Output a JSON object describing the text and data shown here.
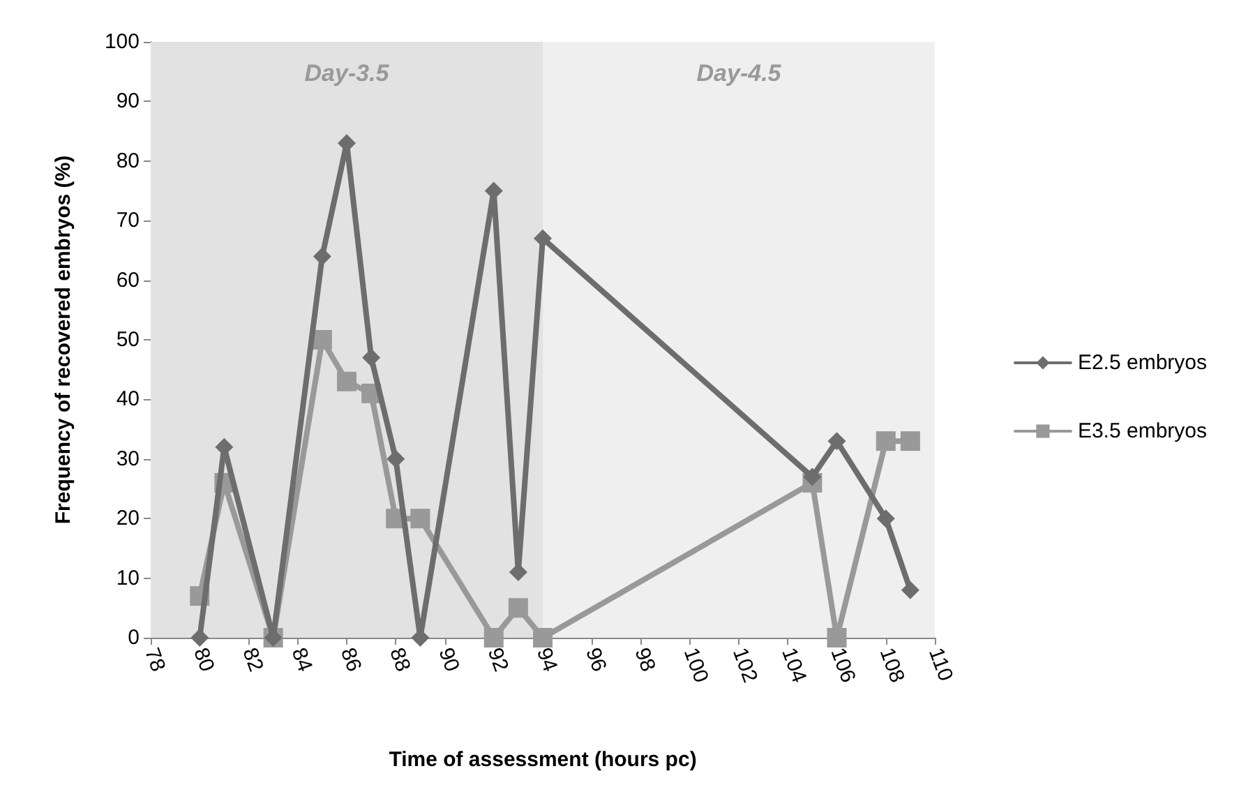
{
  "chart_data": {
    "type": "line",
    "xlabel": "Time of assessment (hours pc)",
    "ylabel": "Frequency of recovered embryos (%)",
    "x": [
      80,
      81,
      83,
      85,
      86,
      87,
      88,
      89,
      92,
      93,
      94,
      105,
      106,
      108,
      109
    ],
    "series": [
      {
        "name": "E2.5 embryos",
        "color": "#6d6d6d",
        "marker": "diamond",
        "values": [
          0,
          32,
          0,
          64,
          83,
          47,
          30,
          0,
          75,
          11,
          67,
          27,
          33,
          20,
          8
        ]
      },
      {
        "name": "E3.5 embryos",
        "color": "#999999",
        "marker": "square",
        "values": [
          7,
          26,
          0,
          50,
          43,
          41,
          20,
          20,
          0,
          5,
          0,
          26,
          0,
          33,
          33
        ]
      }
    ],
    "xlim": [
      78,
      110
    ],
    "xticks": [
      78,
      80,
      82,
      84,
      86,
      88,
      90,
      92,
      94,
      96,
      98,
      100,
      102,
      104,
      106,
      108,
      110
    ],
    "ylim": [
      0,
      100
    ],
    "yticks": [
      0,
      10,
      20,
      30,
      40,
      50,
      60,
      70,
      80,
      90,
      100
    ],
    "bands": [
      {
        "axis": "x",
        "from": 78,
        "to": 94,
        "label": "Day-3.5",
        "color": "#e2e2e2"
      },
      {
        "axis": "x",
        "from": 94,
        "to": 110,
        "label": "Day-4.5",
        "color": "#efefef"
      }
    ],
    "grid": false,
    "legend": "right",
    "line_style": "solid"
  }
}
